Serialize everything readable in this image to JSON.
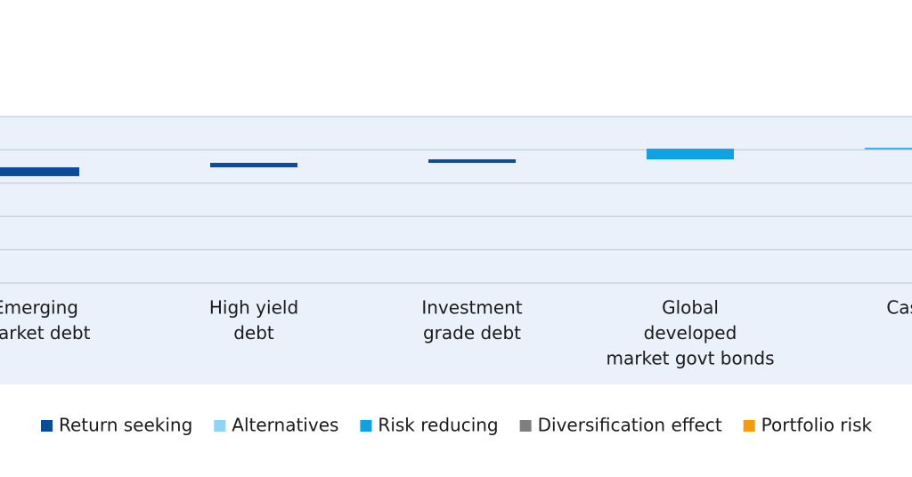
{
  "chart_data": {
    "type": "waterfall",
    "categories": [
      [
        "Emerging",
        "market debt"
      ],
      [
        "High yield",
        "debt"
      ],
      [
        "Investment",
        "grade debt"
      ],
      [
        "Global",
        "developed",
        "market govt bonds"
      ],
      [
        "Cash"
      ]
    ],
    "base": 6.42,
    "series": [
      {
        "name": "Return seeking",
        "color": "#0b4b9b",
        "values": [
          0.53,
          0.27,
          0.21,
          null,
          null
        ]
      },
      {
        "name": "Alternatives",
        "color": "#8fd4f3",
        "values": [
          null,
          null,
          null,
          null,
          null
        ]
      },
      {
        "name": "Risk reducing",
        "color": "#0ea2e2",
        "values": [
          null,
          null,
          null,
          0.64,
          0.05
        ]
      },
      {
        "name": "Diversification effect",
        "color": "#7f7f7f",
        "values": [
          null,
          null,
          null,
          null,
          null
        ]
      },
      {
        "name": "Portfolio risk",
        "color": "#f59c0c",
        "values": [
          null,
          null,
          null,
          null,
          null
        ]
      }
    ],
    "ylim": [
      0,
      10
    ],
    "yticks": [
      0,
      2,
      4,
      6,
      8,
      10
    ],
    "grid": true
  }
}
